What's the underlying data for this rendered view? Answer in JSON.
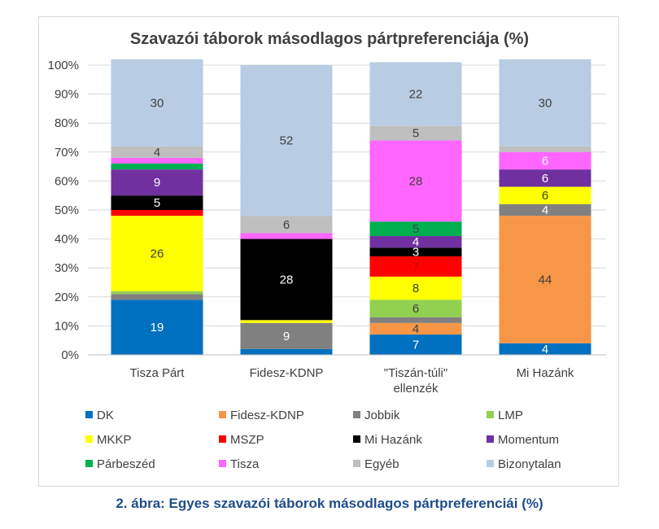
{
  "figure": {
    "caption": "2. ábra: Egyes szavazói táborok másodlagos pártpreferenciái (%)"
  },
  "chart_data": {
    "type": "bar",
    "stacked": true,
    "title": "Szavazói táborok másodlagos pártpreferenciája (%)",
    "categories": [
      "Tisza Párt",
      "Fidesz-KDNP",
      "\"Tiszán-túli\" ellenzék",
      "Mi Hazánk"
    ],
    "category_lines": [
      [
        "Tisza Párt"
      ],
      [
        "Fidesz-KDNP"
      ],
      [
        "\"Tiszán-túli\"",
        "ellenzék"
      ],
      [
        "Mi Hazánk"
      ]
    ],
    "y_ticks": [
      "0%",
      "10%",
      "20%",
      "30%",
      "40%",
      "50%",
      "60%",
      "70%",
      "80%",
      "90%",
      "100%"
    ],
    "ylim": [
      0,
      100
    ],
    "grid": true,
    "legend_position": "bottom",
    "series": [
      {
        "name": "DK",
        "color": "#0070c0",
        "values": [
          19,
          2,
          7,
          4
        ]
      },
      {
        "name": "Fidesz-KDNP",
        "color": "#f79646",
        "values": [
          0,
          0,
          4,
          44
        ]
      },
      {
        "name": "Jobbik",
        "color": "#808080",
        "values": [
          2,
          9,
          2,
          4
        ]
      },
      {
        "name": "LMP",
        "color": "#92d050",
        "values": [
          1,
          0,
          6,
          0
        ]
      },
      {
        "name": "MKKP",
        "color": "#ffff00",
        "values": [
          26,
          1,
          8,
          6
        ]
      },
      {
        "name": "MSZP",
        "color": "#ff0000",
        "values": [
          2,
          0,
          7,
          0
        ]
      },
      {
        "name": "Mi Hazánk",
        "color": "#000000",
        "values": [
          5,
          28,
          3,
          0
        ]
      },
      {
        "name": "Momentum",
        "color": "#7030a0",
        "values": [
          9,
          0,
          4,
          6
        ]
      },
      {
        "name": "Párbeszéd",
        "color": "#00b050",
        "values": [
          2,
          0,
          5,
          0
        ]
      },
      {
        "name": "Tisza",
        "color": "#ff66ff",
        "values": [
          2,
          2,
          28,
          6
        ]
      },
      {
        "name": "Egyéb",
        "color": "#bfbfbf",
        "values": [
          4,
          6,
          5,
          2
        ]
      },
      {
        "name": "Bizonytalan",
        "color": "#b8cce4",
        "values": [
          30,
          52,
          22,
          30
        ]
      }
    ],
    "data_labels": [
      {
        "series": "DK",
        "category": 0,
        "text": "19",
        "color": "#ffffff"
      },
      {
        "series": "DK",
        "category": 2,
        "text": "7",
        "color": "#ffffff"
      },
      {
        "series": "DK",
        "category": 3,
        "text": "4",
        "color": "#ffffff"
      },
      {
        "series": "Fidesz-KDNP",
        "category": 2,
        "text": "4",
        "color": "#404040"
      },
      {
        "series": "Fidesz-KDNP",
        "category": 3,
        "text": "44",
        "color": "#404040"
      },
      {
        "series": "Jobbik",
        "category": 1,
        "text": "9",
        "color": "#ffffff"
      },
      {
        "series": "Jobbik",
        "category": 3,
        "text": "4",
        "color": "#ffffff"
      },
      {
        "series": "LMP",
        "category": 2,
        "text": "6",
        "color": "#404040"
      },
      {
        "series": "MKKP",
        "category": 0,
        "text": "26",
        "color": "#404040"
      },
      {
        "series": "MKKP",
        "category": 2,
        "text": "8",
        "color": "#404040"
      },
      {
        "series": "MKKP",
        "category": 3,
        "text": "6",
        "color": "#404040"
      },
      {
        "series": "MSZP",
        "category": 2,
        "text": "7",
        "color": "#c00000"
      },
      {
        "series": "Mi Hazánk",
        "category": 0,
        "text": "5",
        "color": "#ffffff"
      },
      {
        "series": "Mi Hazánk",
        "category": 1,
        "text": "28",
        "color": "#ffffff"
      },
      {
        "series": "Mi Hazánk",
        "category": 2,
        "text": "3",
        "color": "#ffffff"
      },
      {
        "series": "Momentum",
        "category": 0,
        "text": "9",
        "color": "#ffffff"
      },
      {
        "series": "Momentum",
        "category": 2,
        "text": "4",
        "color": "#ffffff"
      },
      {
        "series": "Momentum",
        "category": 3,
        "text": "6",
        "color": "#ffffff"
      },
      {
        "series": "Párbeszéd",
        "category": 2,
        "text": "5",
        "color": "#404040"
      },
      {
        "series": "Tisza",
        "category": 2,
        "text": "28",
        "color": "#404040"
      },
      {
        "series": "Tisza",
        "category": 3,
        "text": "6",
        "color": "#ffffff"
      },
      {
        "series": "Egyéb",
        "category": 0,
        "text": "4",
        "color": "#404040"
      },
      {
        "series": "Egyéb",
        "category": 1,
        "text": "6",
        "color": "#404040"
      },
      {
        "series": "Egyéb",
        "category": 2,
        "text": "5",
        "color": "#404040"
      },
      {
        "series": "Bizonytalan",
        "category": 0,
        "text": "30",
        "color": "#404040"
      },
      {
        "series": "Bizonytalan",
        "category": 1,
        "text": "52",
        "color": "#404040"
      },
      {
        "series": "Bizonytalan",
        "category": 2,
        "text": "22",
        "color": "#404040"
      },
      {
        "series": "Bizonytalan",
        "category": 3,
        "text": "30",
        "color": "#404040"
      }
    ]
  }
}
